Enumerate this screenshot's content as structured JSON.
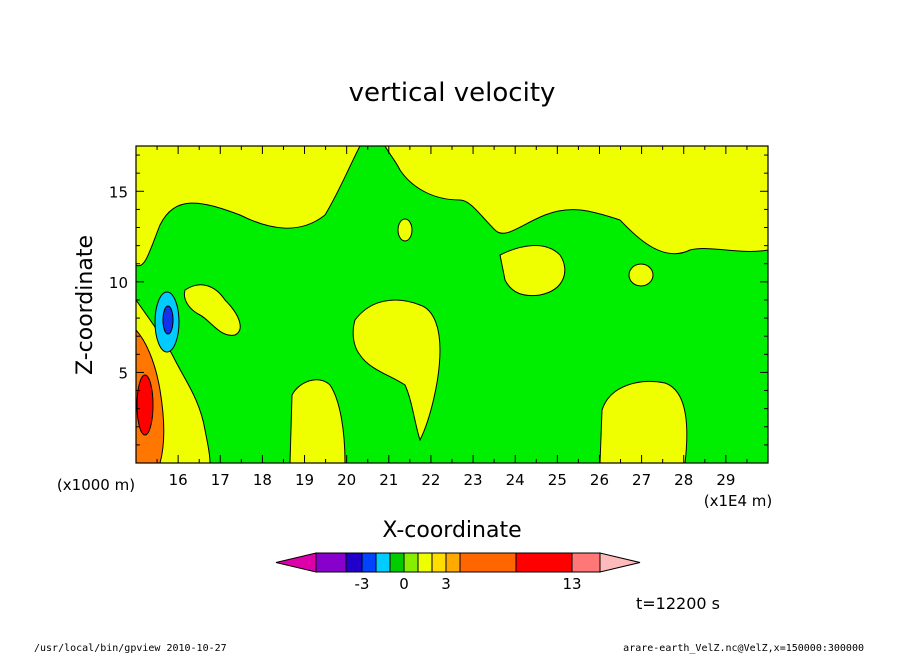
{
  "chart_data": {
    "type": "heatmap",
    "title": "vertical velocity",
    "xlabel": "X-coordinate",
    "ylabel": "Z-coordinate",
    "x_unit": "(x1E4 m)",
    "y_unit": "(x1000 m)",
    "xlim": [
      15.0,
      30.0
    ],
    "ylim": [
      0.0,
      17.5
    ],
    "x_ticks": [
      "16",
      "17",
      "18",
      "19",
      "20",
      "21",
      "22",
      "23",
      "24",
      "25",
      "26",
      "27",
      "28",
      "29"
    ],
    "y_ticks": [
      "5",
      "10",
      "15"
    ],
    "colorbar": {
      "colors": [
        "#dd00aa",
        "#8800cc",
        "#2200cc",
        "#0044ff",
        "#00ccff",
        "#00cc00",
        "#88ee00",
        "#eeff00",
        "#ffdd00",
        "#ffaa00",
        "#ff6600",
        "#ff0000",
        "#ff7777",
        "#ffbbbb"
      ],
      "labels": [
        "-3",
        "0",
        "3",
        "13"
      ]
    },
    "time_label": "t=12200 s",
    "grid": false
  },
  "footer": {
    "left": "/usr/local/bin/gpview   2010-10-27",
    "right": "arare-earth_VelZ.nc@VelZ,x=150000:300000"
  }
}
